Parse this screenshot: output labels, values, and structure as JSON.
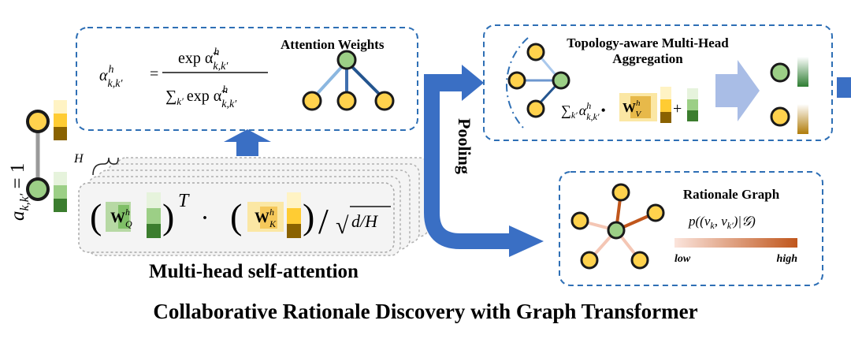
{
  "caption": "Collaborative Rationale Discovery with Graph Transformer",
  "left_edge_label": "a",
  "left_edge_label_sub": "k,k′",
  "left_edge_label_eq": " = 1",
  "heads_label": "H",
  "attention_formula": {
    "lhs": "α",
    "lhs_sup": "h",
    "lhs_sub": "k,k′",
    "equals": "=",
    "numerator": "exp α̃",
    "numerator_sup": "h",
    "numerator_sub": "k,k′",
    "denominator_sum": "∑",
    "denominator_sum_sub": "k′",
    "denominator": "exp α̃",
    "denominator_sup": "h",
    "denominator_sub": "k,k′"
  },
  "attention_weights_title": "Attention Weights",
  "self_attention_formula": {
    "open1": "(",
    "wq": "W",
    "wq_sup": "h",
    "wq_sub": "Q",
    "close1": ")",
    "transpose": "T",
    "dot": "·",
    "open2": "(",
    "wk": "W",
    "wk_sup": "h",
    "wk_sub": "K",
    "close2": ")",
    "slash": "/",
    "sqrt": "√",
    "sqrt_arg": "d/H"
  },
  "self_attention_title": "Multi-head self-attention",
  "aggregation_title_line1": "Topology-aware Multi-Head",
  "aggregation_title_line2": "Aggregation",
  "aggregation_formula": {
    "sum": "∑",
    "sum_sub": "k′",
    "alpha": "α",
    "alpha_sup": "h",
    "alpha_sub": "k,k′",
    "bullet": "•",
    "wv": "W",
    "wv_sup": "h",
    "wv_sub": "V",
    "plus": "+"
  },
  "pooling_label": "Pooling",
  "rationale_title": "Rationale Graph",
  "rationale_formula": {
    "p": "p((v",
    "p_sub1": "k",
    "p_mid": ", v",
    "p_sub2": "k′",
    "p_end": ")|𝒢)"
  },
  "legend_low": "low",
  "legend_high": "high",
  "colors": {
    "dashed_border": "#2e6fb5",
    "flow_arrow": "#3a6fc4",
    "arrow_light": "#a9bde6",
    "node_yellow": "#ffd24d",
    "node_green": "#9ccf86",
    "edge_strong": "#c0561c",
    "edge_weak": "#f4c6b4",
    "tree_light": "#8bb7e0",
    "tree_dark": "#24558f"
  },
  "icons": [
    "flow-arrow-icon",
    "node-icon",
    "feature-bar-icon",
    "gradient-bar-icon"
  ]
}
